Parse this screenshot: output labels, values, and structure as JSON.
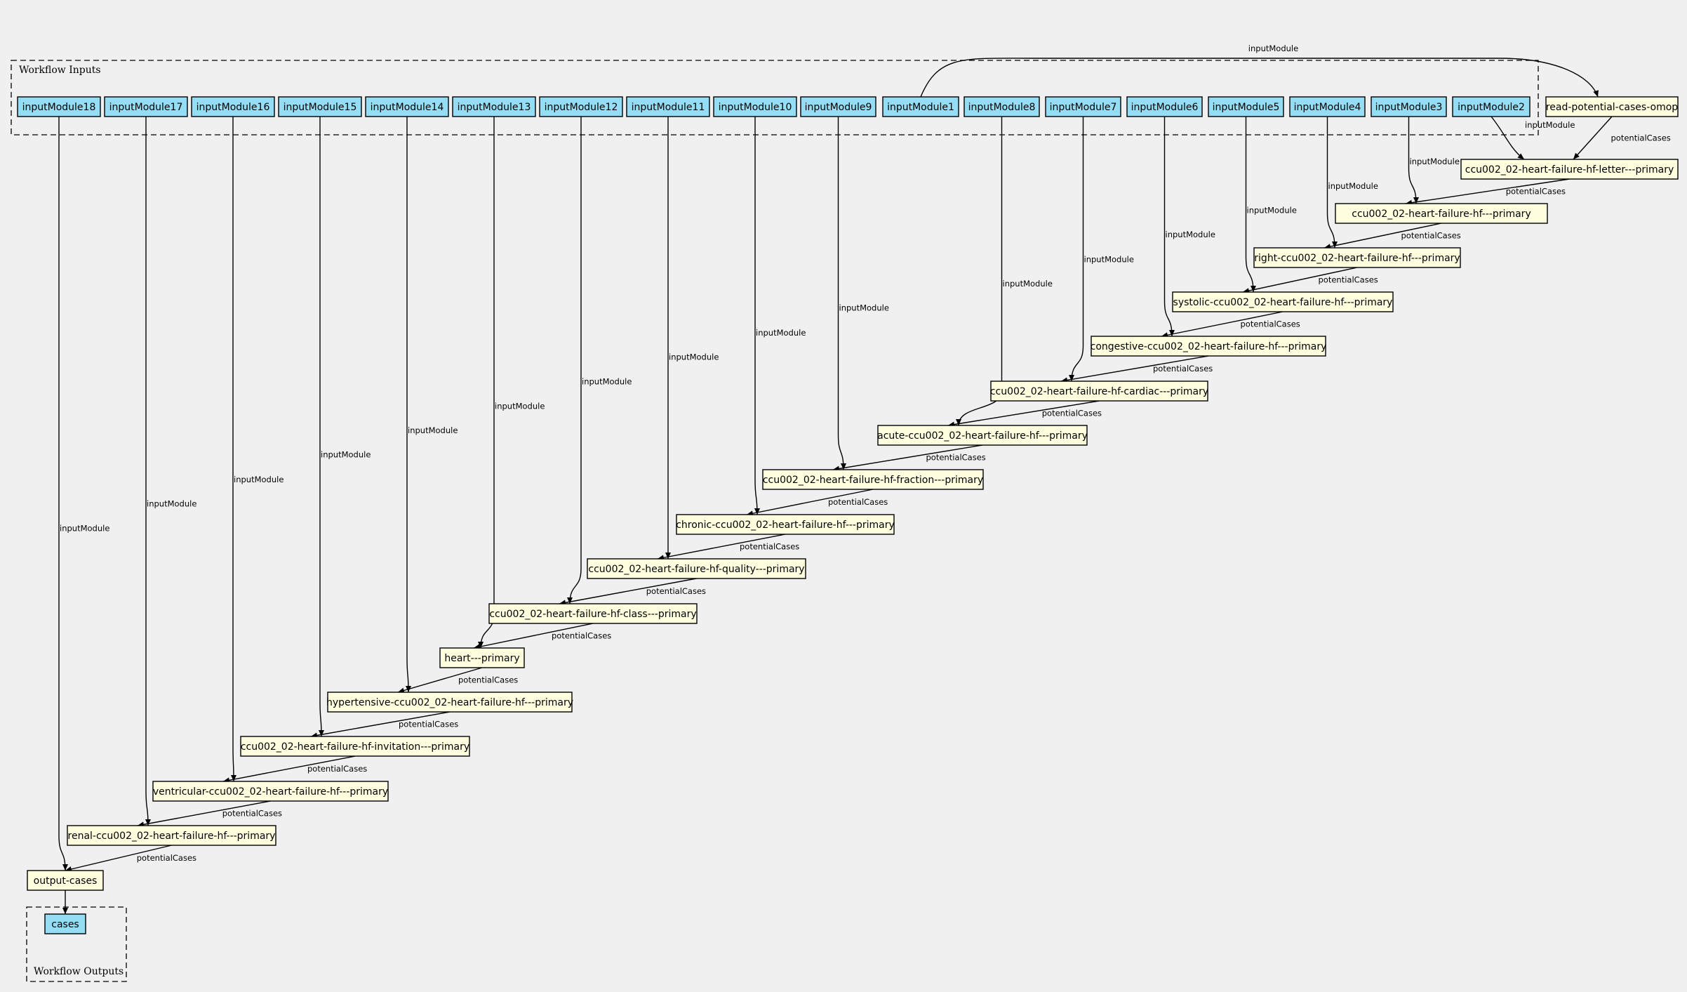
{
  "clusters": {
    "inputs_label": "Workflow Inputs",
    "outputs_label": "Workflow Outputs"
  },
  "colors": {
    "background": "#f0f0f0",
    "input_node_fill": "#94ddf4",
    "step_node_fill": "#ffffe0",
    "stroke": "#000000"
  },
  "inputs": [
    {
      "id": "in18",
      "label": "inputModule18"
    },
    {
      "id": "in17",
      "label": "inputModule17"
    },
    {
      "id": "in16",
      "label": "inputModule16"
    },
    {
      "id": "in15",
      "label": "inputModule15"
    },
    {
      "id": "in14",
      "label": "inputModule14"
    },
    {
      "id": "in13",
      "label": "inputModule13"
    },
    {
      "id": "in12",
      "label": "inputModule12"
    },
    {
      "id": "in11",
      "label": "inputModule11"
    },
    {
      "id": "in10",
      "label": "inputModule10"
    },
    {
      "id": "in9",
      "label": "inputModule9"
    },
    {
      "id": "in1",
      "label": "inputModule1"
    },
    {
      "id": "in8",
      "label": "inputModule8"
    },
    {
      "id": "in7",
      "label": "inputModule7"
    },
    {
      "id": "in6",
      "label": "inputModule6"
    },
    {
      "id": "in5",
      "label": "inputModule5"
    },
    {
      "id": "in4",
      "label": "inputModule4"
    },
    {
      "id": "in3",
      "label": "inputModule3"
    },
    {
      "id": "in2",
      "label": "inputModule2"
    }
  ],
  "steps": [
    {
      "id": "s0",
      "label": "read-potential-cases-omop"
    },
    {
      "id": "s1",
      "label": "ccu002_02-heart-failure-hf-letter---primary"
    },
    {
      "id": "s2",
      "label": "ccu002_02-heart-failure-hf---primary"
    },
    {
      "id": "s3",
      "label": "right-ccu002_02-heart-failure-hf---primary"
    },
    {
      "id": "s4",
      "label": "systolic-ccu002_02-heart-failure-hf---primary"
    },
    {
      "id": "s5",
      "label": "congestive-ccu002_02-heart-failure-hf---primary"
    },
    {
      "id": "s6",
      "label": "ccu002_02-heart-failure-hf-cardiac---primary"
    },
    {
      "id": "s7",
      "label": "acute-ccu002_02-heart-failure-hf---primary"
    },
    {
      "id": "s8",
      "label": "ccu002_02-heart-failure-hf-fraction---primary"
    },
    {
      "id": "s9",
      "label": "chronic-ccu002_02-heart-failure-hf---primary"
    },
    {
      "id": "s10",
      "label": "ccu002_02-heart-failure-hf-quality---primary"
    },
    {
      "id": "s11",
      "label": "ccu002_02-heart-failure-hf-class---primary"
    },
    {
      "id": "s12",
      "label": "heart---primary"
    },
    {
      "id": "s13",
      "label": "hypertensive-ccu002_02-heart-failure-hf---primary"
    },
    {
      "id": "s14",
      "label": "ccu002_02-heart-failure-hf-invitation---primary"
    },
    {
      "id": "s15",
      "label": "ventricular-ccu002_02-heart-failure-hf---primary"
    },
    {
      "id": "s16",
      "label": "renal-ccu002_02-heart-failure-hf---primary"
    },
    {
      "id": "s17",
      "label": "output-cases"
    }
  ],
  "outputs": [
    {
      "id": "out",
      "label": "cases"
    }
  ],
  "edges": [
    {
      "from": "in1",
      "to": "s0",
      "label": "inputModule"
    },
    {
      "from": "in2",
      "to": "s1",
      "label": "inputModule"
    },
    {
      "from": "s0",
      "to": "s1",
      "label": "potentialCases"
    },
    {
      "from": "in3",
      "to": "s2",
      "label": "inputModule"
    },
    {
      "from": "s1",
      "to": "s2",
      "label": "potentialCases"
    },
    {
      "from": "in4",
      "to": "s3",
      "label": "inputModule"
    },
    {
      "from": "s2",
      "to": "s3",
      "label": "potentialCases"
    },
    {
      "from": "in5",
      "to": "s4",
      "label": "inputModule"
    },
    {
      "from": "s3",
      "to": "s4",
      "label": "potentialCases"
    },
    {
      "from": "in6",
      "to": "s5",
      "label": "inputModule"
    },
    {
      "from": "s4",
      "to": "s5",
      "label": "potentialCases"
    },
    {
      "from": "in7",
      "to": "s6",
      "label": "inputModule"
    },
    {
      "from": "s5",
      "to": "s6",
      "label": "potentialCases"
    },
    {
      "from": "in8",
      "to": "s7",
      "label": "inputModule"
    },
    {
      "from": "s6",
      "to": "s7",
      "label": "potentialCases"
    },
    {
      "from": "in9",
      "to": "s8",
      "label": "inputModule"
    },
    {
      "from": "s7",
      "to": "s8",
      "label": "potentialCases"
    },
    {
      "from": "in10",
      "to": "s9",
      "label": "inputModule"
    },
    {
      "from": "s8",
      "to": "s9",
      "label": "potentialCases"
    },
    {
      "from": "in11",
      "to": "s10",
      "label": "inputModule"
    },
    {
      "from": "s9",
      "to": "s10",
      "label": "potentialCases"
    },
    {
      "from": "in12",
      "to": "s11",
      "label": "inputModule"
    },
    {
      "from": "s10",
      "to": "s11",
      "label": "potentialCases"
    },
    {
      "from": "in13",
      "to": "s12",
      "label": "inputModule"
    },
    {
      "from": "s11",
      "to": "s12",
      "label": "potentialCases"
    },
    {
      "from": "in14",
      "to": "s13",
      "label": "inputModule"
    },
    {
      "from": "s12",
      "to": "s13",
      "label": "potentialCases"
    },
    {
      "from": "in15",
      "to": "s14",
      "label": "inputModule"
    },
    {
      "from": "s13",
      "to": "s14",
      "label": "potentialCases"
    },
    {
      "from": "in16",
      "to": "s15",
      "label": "inputModule"
    },
    {
      "from": "s14",
      "to": "s15",
      "label": "potentialCases"
    },
    {
      "from": "in17",
      "to": "s16",
      "label": "inputModule"
    },
    {
      "from": "s15",
      "to": "s16",
      "label": "potentialCases"
    },
    {
      "from": "in18",
      "to": "s17",
      "label": "inputModule"
    },
    {
      "from": "s16",
      "to": "s17",
      "label": "potentialCases"
    },
    {
      "from": "s17",
      "to": "out",
      "label": ""
    }
  ]
}
